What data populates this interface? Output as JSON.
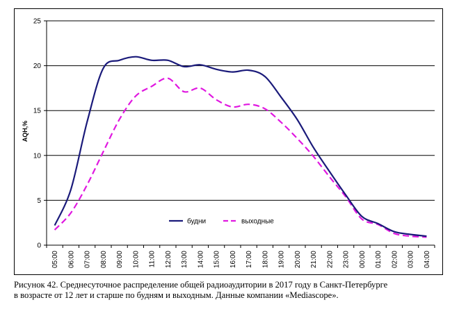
{
  "chart_data": {
    "type": "line",
    "title": "",
    "xlabel": "",
    "ylabel": "AQH,%",
    "ylim": [
      0,
      25
    ],
    "yticks": [
      0,
      5,
      10,
      15,
      20,
      25
    ],
    "grid": true,
    "legend_position": "bottom-center",
    "categories": [
      "05:00",
      "06:00",
      "07:00",
      "08:00",
      "09:00",
      "10:00",
      "11:00",
      "12:00",
      "13:00",
      "14:00",
      "15:00",
      "16:00",
      "17:00",
      "18:00",
      "19:00",
      "20:00",
      "21:00",
      "22:00",
      "23:00",
      "00:00",
      "01:00",
      "02:00",
      "03:00",
      "04:00"
    ],
    "series": [
      {
        "name": "будни",
        "color": "#1a1a7a",
        "dash": "solid",
        "values": [
          2.2,
          6.2,
          13.7,
          19.7,
          20.6,
          21.0,
          20.6,
          20.6,
          19.9,
          20.1,
          19.6,
          19.3,
          19.5,
          18.8,
          16.5,
          14.0,
          10.9,
          8.2,
          5.6,
          3.2,
          2.4,
          1.5,
          1.2,
          1.0
        ]
      },
      {
        "name": "выходные",
        "color": "#e018e0",
        "dash": "dashed",
        "values": [
          1.7,
          3.6,
          6.7,
          10.4,
          14.0,
          16.6,
          17.7,
          18.6,
          17.1,
          17.5,
          16.2,
          15.4,
          15.7,
          15.2,
          13.7,
          11.9,
          9.9,
          7.6,
          5.4,
          2.9,
          2.3,
          1.3,
          1.0,
          0.9
        ]
      }
    ]
  },
  "caption": {
    "line1": "Рисунок 42. Среднесуточное распределение общей радиоаудитории в 2017 году в Санкт-Петербурге",
    "line2": "в возрасте от 12 лет и старше по будням и выходным. Данные компании «Mediascope»."
  }
}
